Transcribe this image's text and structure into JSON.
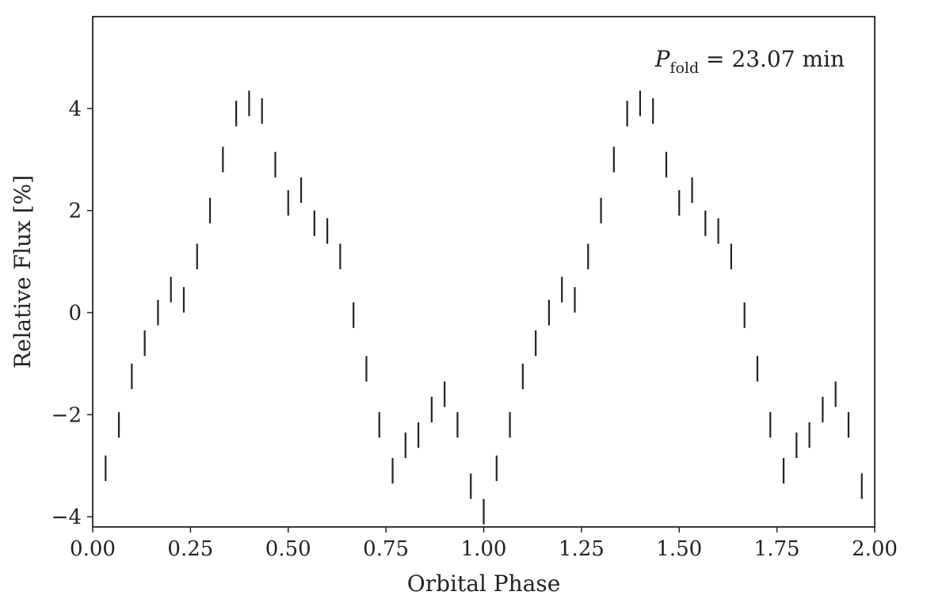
{
  "chart_data": {
    "type": "scatter",
    "marker": "vertical error bars",
    "xlabel": "Orbital Phase",
    "ylabel": "Relative Flux [%]",
    "xlim": [
      0.0,
      2.0
    ],
    "ylim": [
      -4.2,
      5.8
    ],
    "xticks": [
      0.0,
      0.25,
      0.5,
      0.75,
      1.0,
      1.25,
      1.5,
      1.75,
      2.0
    ],
    "xtick_labels": [
      "0.00",
      "0.25",
      "0.50",
      "0.75",
      "1.00",
      "1.25",
      "1.50",
      "1.75",
      "2.00"
    ],
    "yticks": [
      -4,
      -2,
      0,
      2,
      4
    ],
    "ytick_labels": [
      "−4",
      "−2",
      "0",
      "2",
      "4"
    ],
    "annotation": {
      "symbol": "P",
      "subscript": "fold",
      "text": " = 23.07 min"
    },
    "error_half_width": 0.25,
    "series": [
      {
        "x": [
          0.033,
          0.067,
          0.1,
          0.133,
          0.167,
          0.2,
          0.233,
          0.267,
          0.3,
          0.333,
          0.367,
          0.4,
          0.433,
          0.467,
          0.5,
          0.533,
          0.567,
          0.6,
          0.633,
          0.667,
          0.7,
          0.733,
          0.767,
          0.8,
          0.833,
          0.867,
          0.9,
          0.933,
          0.967,
          1.0,
          1.033,
          1.067,
          1.1,
          1.133,
          1.167,
          1.2,
          1.233,
          1.267,
          1.3,
          1.333,
          1.367,
          1.4,
          1.433,
          1.467,
          1.5,
          1.533,
          1.567,
          1.6,
          1.633,
          1.667,
          1.7,
          1.733,
          1.767,
          1.8,
          1.833,
          1.867,
          1.9,
          1.933,
          1.967
        ],
        "y": [
          -3.05,
          -2.2,
          -1.25,
          -0.6,
          0.0,
          0.45,
          0.25,
          1.1,
          2.0,
          3.0,
          3.9,
          4.1,
          3.95,
          2.9,
          2.15,
          2.4,
          1.75,
          1.6,
          1.1,
          -0.05,
          -1.1,
          -2.2,
          -3.1,
          -2.6,
          -2.4,
          -1.9,
          -1.6,
          -2.2,
          -3.4,
          -3.9,
          -3.05,
          -2.2,
          -1.25,
          -0.6,
          0.0,
          0.45,
          0.25,
          1.1,
          2.0,
          3.0,
          3.9,
          4.1,
          3.95,
          2.9,
          2.15,
          2.4,
          1.75,
          1.6,
          1.1,
          -0.05,
          -1.1,
          -2.2,
          -3.1,
          -2.6,
          -2.4,
          -1.9,
          -1.6,
          -2.2,
          -3.4
        ]
      }
    ]
  }
}
